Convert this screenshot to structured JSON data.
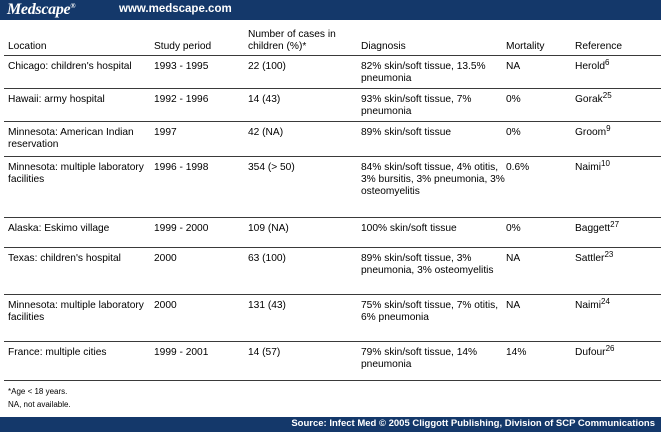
{
  "header": {
    "logo": "Medscape",
    "logo_mark": "®",
    "url": "www.medscape.com"
  },
  "table": {
    "columns": [
      "Location",
      "Study period",
      "Number of cases in children (%)*",
      "Diagnosis",
      "Mortality",
      "Reference"
    ],
    "rows": [
      {
        "location": "Chicago: children's hospital",
        "period": "1993 - 1995",
        "cases": "22 (100)",
        "diagnosis": "82% skin/soft tissue, 13.5% pneumonia",
        "mortality": "NA",
        "ref_author": "Herold",
        "ref_num": "6"
      },
      {
        "location": "Hawaii: army hospital",
        "period": "1992 - 1996",
        "cases": "14 (43)",
        "diagnosis": "93% skin/soft tissue, 7% pneumonia",
        "mortality": "0%",
        "ref_author": "Gorak",
        "ref_num": "25"
      },
      {
        "location": "Minnesota: American Indian reservation",
        "period": "1997",
        "cases": "42 (NA)",
        "diagnosis": "89% skin/soft tissue",
        "mortality": "0%",
        "ref_author": "Groom",
        "ref_num": "9"
      },
      {
        "location": "Minnesota: multiple laboratory facilities",
        "period": "1996 - 1998",
        "cases": "354 (> 50)",
        "diagnosis": "84% skin/soft tissue, 4% otitis, 3% bursitis, 3% pneumonia, 3% osteomyelitis",
        "mortality": "0.6%",
        "ref_author": "Naimi",
        "ref_num": "10"
      },
      {
        "location": "Alaska: Eskimo village",
        "period": "1999 - 2000",
        "cases": "109 (NA)",
        "diagnosis": "100% skin/soft tissue",
        "mortality": "0%",
        "ref_author": "Baggett",
        "ref_num": "27"
      },
      {
        "location": "Texas: children's hospital",
        "period": "2000",
        "cases": "63 (100)",
        "diagnosis": "89% skin/soft tissue, 3% pneumonia, 3% osteomyelitis",
        "mortality": "NA",
        "ref_author": "Sattler",
        "ref_num": "23"
      },
      {
        "location": "Minnesota: multiple laboratory facilities",
        "period": "2000",
        "cases": "131 (43)",
        "diagnosis": "75% skin/soft tissue, 7% otitis, 6% pneumonia",
        "mortality": "NA",
        "ref_author": "Naimi",
        "ref_num": "24"
      },
      {
        "location": "France: multiple cities",
        "period": "1999 - 2001",
        "cases": "14 (57)",
        "diagnosis": "79% skin/soft tissue, 14% pneumonia",
        "mortality": "14%",
        "ref_author": "Dufour",
        "ref_num": "26"
      }
    ]
  },
  "footnotes": {
    "age": "*Age < 18 years.",
    "na": "NA, not available."
  },
  "footer": {
    "source": "Source: Infect Med © 2005 Cliggott Publishing, Division of SCP Communications"
  }
}
